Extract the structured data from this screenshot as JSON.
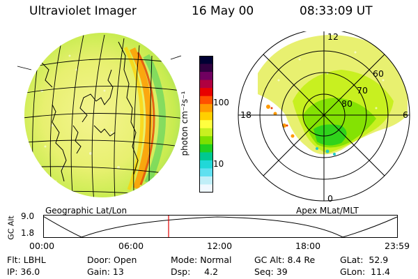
{
  "header": {
    "instrument": "Ultraviolet Imager",
    "date": "16 May 00",
    "time": "08:33:09 UT"
  },
  "colorbar": {
    "label": "photon cm⁻²s⁻¹",
    "ticks": [
      "100",
      "10"
    ],
    "colors": [
      "#000033",
      "#300040",
      "#700060",
      "#b00040",
      "#e80000",
      "#ff5000",
      "#ff9a00",
      "#ffd000",
      "#ffff40",
      "#c8f020",
      "#7ce000",
      "#20d020",
      "#00c890",
      "#20d8d8",
      "#60e0f0",
      "#c0eef8",
      "#f0f8ff"
    ]
  },
  "left_panel": {
    "label": "Geographic Lat/Lon"
  },
  "right_panel": {
    "label": "Apex MLat/MLT",
    "mlt_labels": {
      "top": "12",
      "bottom": "0",
      "left": "18",
      "right": "6"
    },
    "lat_labels": [
      "60",
      "70",
      "80"
    ]
  },
  "altitude_plot": {
    "axis_label": "GC Alt",
    "y_ticks": [
      "9.0",
      "1.8"
    ],
    "x_ticks": [
      "00:00",
      "06:00",
      "12:00",
      "18:00",
      "23:59"
    ],
    "marker_color": "#e00000"
  },
  "info": {
    "row1": [
      "Flt: LBHL",
      "Door: Open",
      "Mode: Normal",
      "GC Alt: 8.4 Re",
      "GLat:  52.9"
    ],
    "row2": [
      "IP: 36.0",
      "Gain: 13",
      "Dsp:     4.2",
      "Seq: 39",
      "GLon:  11.4"
    ]
  }
}
